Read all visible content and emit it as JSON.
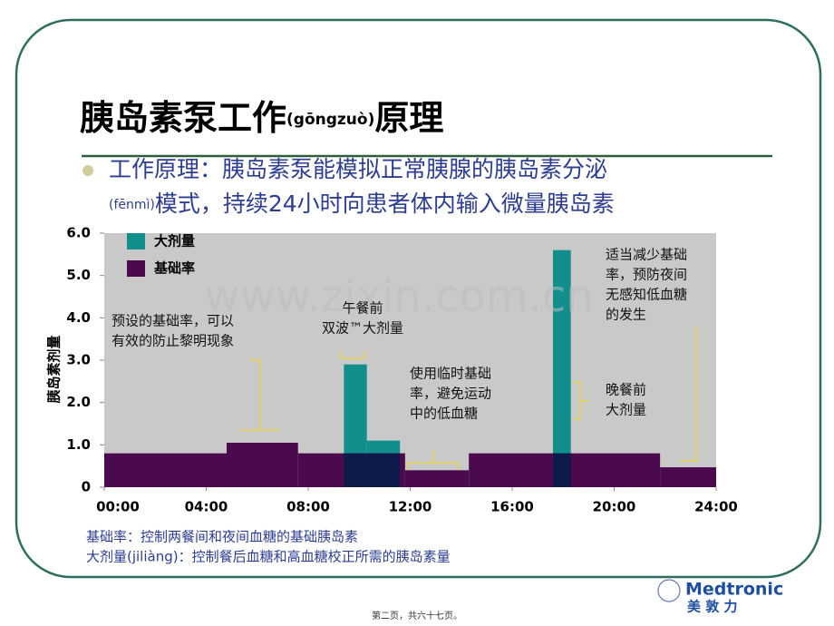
{
  "title": {
    "main": "胰岛素泵工作",
    "pinyin": "(gōngzuò)",
    "end": "原理"
  },
  "bullet": {
    "line1": "工作原理：胰岛素泵能模拟正常胰腺的胰岛素分泌",
    "pinyin": "(fēnmì)",
    "line2": "模式，持续24小时向患者体内输入微量胰岛素"
  },
  "chart_data": {
    "type": "bar",
    "y_label": "胰岛素剂量",
    "watermark": "www.zixin.com.cn",
    "xlim": [
      0,
      24
    ],
    "xticks": [
      {
        "value": 0,
        "label": "00:00"
      },
      {
        "value": 4,
        "label": "04:00"
      },
      {
        "value": 8,
        "label": "08:00"
      },
      {
        "value": 12,
        "label": "12:00"
      },
      {
        "value": 16,
        "label": "16:00"
      },
      {
        "value": 20,
        "label": "20:00"
      },
      {
        "value": 24,
        "label": "24:00"
      }
    ],
    "ylim": [
      0,
      6
    ],
    "yticks": [
      0,
      {
        "value": 1,
        "label": "1.0"
      },
      {
        "value": 2,
        "label": "2.0"
      },
      {
        "value": 3,
        "label": "3.0"
      },
      {
        "value": 4,
        "label": "4.0"
      },
      {
        "value": 5,
        "label": "5.0"
      },
      {
        "value": 6,
        "label": "6.0"
      }
    ],
    "series": [
      {
        "name": "大剂量",
        "color": "#128f8c",
        "bars": [
          {
            "start": 9.4,
            "end": 10.3,
            "value": 2.9
          },
          {
            "start": 10.3,
            "end": 11.6,
            "value": 1.1
          },
          {
            "start": 17.6,
            "end": 18.3,
            "value": 5.6
          }
        ]
      },
      {
        "name": "基础率",
        "color": "#4b0a4e",
        "bars": [
          {
            "start": 0,
            "end": 4.8,
            "value": 0.8
          },
          {
            "start": 4.8,
            "end": 7.6,
            "value": 1.05
          },
          {
            "start": 7.6,
            "end": 11.8,
            "value": 0.8
          },
          {
            "start": 11.8,
            "end": 14.3,
            "value": 0.4
          },
          {
            "start": 14.3,
            "end": 21.8,
            "value": 0.8
          },
          {
            "start": 21.8,
            "end": 24,
            "value": 0.47
          }
        ]
      }
    ],
    "annotations": [
      {
        "lines": [
          "预设的基础率，可以",
          "有效的防止黎明现象"
        ]
      },
      {
        "lines": [
          "午餐前",
          "双波™大剂量"
        ]
      },
      {
        "lines": [
          "使用临时基础",
          "率，避免运动",
          "中的低血糖"
        ]
      },
      {
        "lines": [
          "适当减少基础",
          "率，预防夜间",
          "无感知低血糖",
          "的发生"
        ]
      },
      {
        "lines": [
          "晚餐前",
          "大剂量"
        ]
      }
    ]
  },
  "notes": [
    "基础率：控制两餐间和夜间血糖的基础胰岛素",
    "大剂量(jiliàng)：控制餐后血糖和高血糖校正所需的胰岛素量"
  ],
  "logo": {
    "brand": "Medtronic",
    "chinese": "美 敦 力"
  },
  "footer": "第二页，共六十七页。"
}
